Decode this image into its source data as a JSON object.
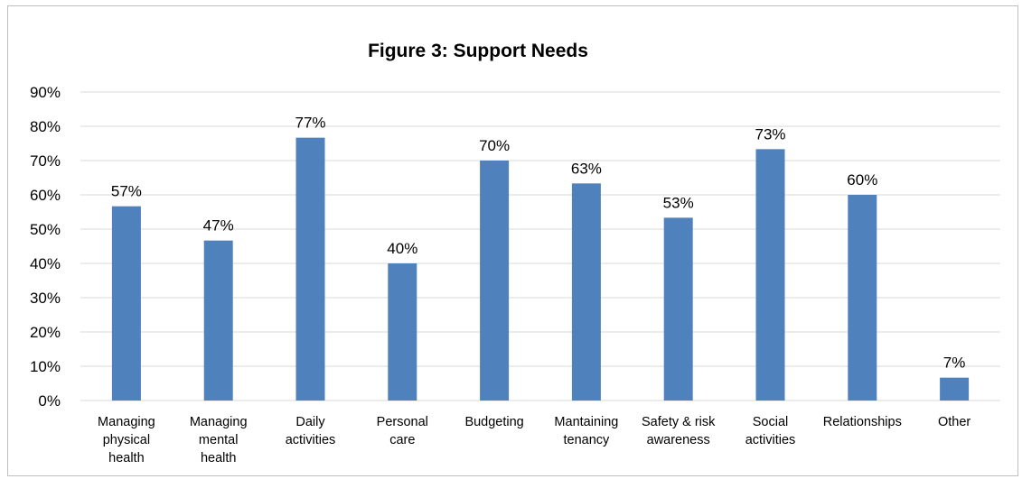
{
  "chart_data": {
    "type": "bar",
    "title": "Figure 3: Support Needs",
    "xlabel": "",
    "ylabel": "",
    "ylim": [
      0,
      90
    ],
    "y_ticks": [
      0,
      10,
      20,
      30,
      40,
      50,
      60,
      70,
      80,
      90
    ],
    "y_tick_suffix": "%",
    "grid": true,
    "legend": "none",
    "bar_color": "#4f81bd",
    "categories": [
      [
        "Managing",
        "physical",
        "health"
      ],
      [
        "Managing",
        "mental",
        "health"
      ],
      [
        "Daily",
        "activities"
      ],
      [
        "Personal",
        "care"
      ],
      [
        "Budgeting"
      ],
      [
        "Mantaining",
        "tenancy"
      ],
      [
        "Safety & risk",
        "awareness"
      ],
      [
        "Social",
        "activities"
      ],
      [
        "Relationships"
      ],
      [
        "Other"
      ]
    ],
    "values": [
      56.67,
      46.67,
      76.67,
      40,
      70,
      63.33,
      53.33,
      73.33,
      60,
      6.67
    ],
    "data_labels": [
      "57%",
      "47%",
      "77%",
      "40%",
      "70%",
      "63%",
      "53%",
      "73%",
      "60%",
      "7%"
    ]
  }
}
